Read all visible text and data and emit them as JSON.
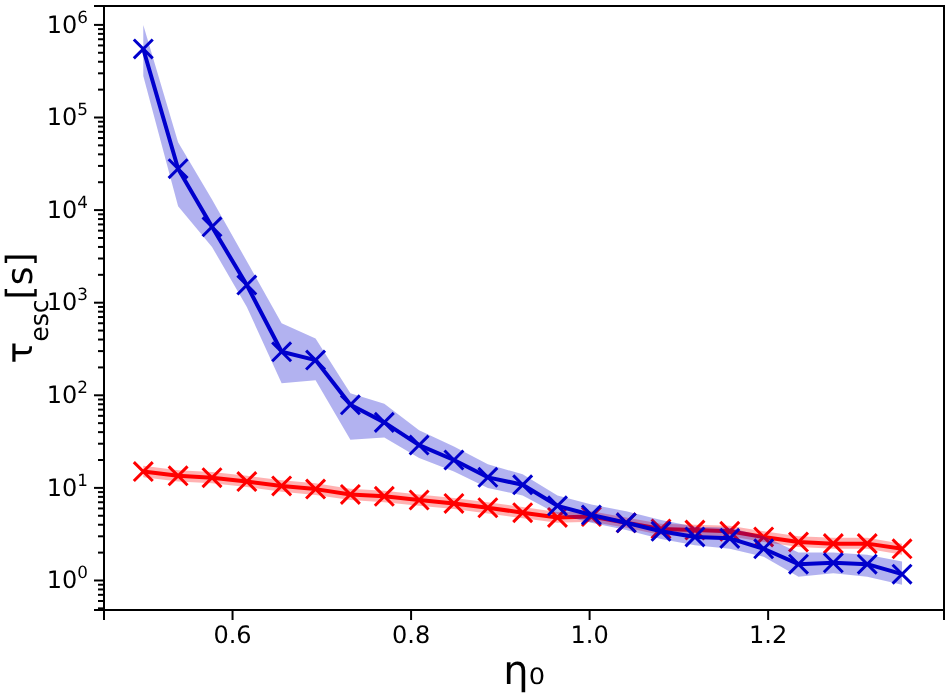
{
  "chart_data": {
    "type": "line",
    "xlabel": "η₀",
    "ylabel": "τ$_{esc}$[s]",
    "log": "y",
    "marker": "cross",
    "line_style": "solid",
    "grid": false,
    "x": [
      0.5,
      0.539,
      0.577,
      0.616,
      0.655,
      0.693,
      0.732,
      0.77,
      0.809,
      0.848,
      0.886,
      0.925,
      0.964,
      1.002,
      1.041,
      1.08,
      1.118,
      1.157,
      1.195,
      1.234,
      1.273,
      1.311,
      1.35
    ],
    "xlim": [
      0.456,
      1.397
    ],
    "xticks": [
      0.6,
      0.8,
      {
        "value": 1.0,
        "label": "1.0"
      },
      1.2
    ],
    "ylim": [
      0.48,
      1600000
    ],
    "yticks": [
      {
        "value": 1,
        "label": "10$^{0}$"
      },
      {
        "value": 10,
        "label": "10$^{1}$"
      },
      {
        "value": 100,
        "label": "10$^{2}$"
      },
      {
        "value": 1000,
        "label": "10$^{3}$"
      },
      {
        "value": 10000,
        "label": "10$^{4}$"
      },
      {
        "value": 100000,
        "label": "10$^{5}$"
      },
      {
        "value": 1000000,
        "label": "10$^{6}$"
      }
    ],
    "series": [
      {
        "color": "#0000cc",
        "values": [
          550000,
          28000,
          6600,
          1550,
          295,
          240,
          79,
          51,
          29,
          20,
          13,
          10.8,
          6.4,
          5.1,
          4.2,
          3.4,
          2.95,
          2.85,
          2.2,
          1.5,
          1.55,
          1.5,
          1.17
        ],
        "upper": [
          1000000,
          54000,
          13000,
          2800,
          600,
          410,
          105,
          81,
          42,
          28,
          18,
          14,
          8.3,
          6.6,
          5.6,
          4.5,
          3.8,
          3.7,
          3.0,
          2.0,
          2.0,
          1.9,
          1.6
        ],
        "lower": [
          280000,
          11000,
          4000,
          900,
          135,
          145,
          33,
          35,
          21,
          15,
          10,
          8.3,
          5.2,
          4.2,
          3.5,
          2.8,
          2.4,
          2.2,
          1.8,
          1.1,
          1.2,
          1.1,
          0.9
        ]
      },
      {
        "color": "#ff0000",
        "values": [
          15.0,
          13.5,
          12.9,
          11.7,
          10.5,
          9.7,
          8.5,
          8.1,
          7.4,
          6.8,
          6.1,
          5.4,
          4.8,
          4.9,
          4.2,
          3.6,
          3.5,
          3.4,
          2.95,
          2.6,
          2.5,
          2.5,
          2.2
        ],
        "upper": [
          17.3,
          15.5,
          14.8,
          13.5,
          12.1,
          11.2,
          9.8,
          9.3,
          8.5,
          7.8,
          7.0,
          6.2,
          5.5,
          5.6,
          4.8,
          4.1,
          4.0,
          3.9,
          3.4,
          3.0,
          2.9,
          2.9,
          2.5
        ],
        "lower": [
          13.0,
          11.7,
          11.2,
          10.2,
          9.1,
          8.4,
          7.4,
          7.0,
          6.4,
          5.9,
          5.3,
          4.7,
          4.2,
          4.3,
          3.7,
          3.1,
          3.0,
          3.0,
          2.6,
          2.3,
          2.2,
          2.2,
          1.9
        ]
      }
    ]
  }
}
